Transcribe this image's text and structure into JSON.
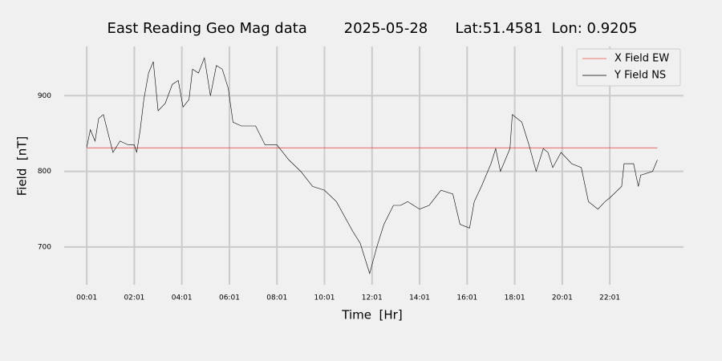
{
  "chart_data": {
    "type": "line",
    "title": "East Reading Geo Mag data        2025-05-28      Lat:51.4581  Lon: 0.9205",
    "xlabel": "Time  [Hr]",
    "ylabel": "Field  [nT]",
    "x": [
      0,
      0.15,
      0.35,
      0.5,
      0.7,
      0.9,
      1.1,
      1.4,
      1.75,
      2,
      2.1,
      2.25,
      2.4,
      2.6,
      2.8,
      3,
      3.3,
      3.6,
      3.85,
      4.05,
      4.3,
      4.45,
      4.7,
      4.95,
      5.2,
      5.45,
      5.7,
      5.95,
      6.15,
      6.5,
      7.1,
      7.5,
      8,
      8.5,
      9,
      9.5,
      10,
      10.5,
      11.2,
      11.5,
      11.9,
      12.2,
      12.5,
      12.9,
      13.2,
      13.5,
      14,
      14.4,
      14.9,
      15.4,
      15.7,
      16.1,
      16.3,
      16.6,
      17,
      17.2,
      17.4,
      17.8,
      17.9,
      18.3,
      18.6,
      18.9,
      19.2,
      19.4,
      19.6,
      19.95,
      20.4,
      20.8,
      21.1,
      21.5,
      21.8,
      22,
      22.5,
      22.6,
      23,
      23.2,
      23.3,
      23.8,
      24
    ],
    "series": [
      {
        "name": "X Field EW",
        "color": "#e5534b",
        "x": [
          0,
          24
        ],
        "values": [
          831,
          831
        ]
      },
      {
        "name": "Y Field NS",
        "color": "#000000",
        "values": [
          832,
          855,
          840,
          870,
          875,
          850,
          825,
          840,
          835,
          835,
          825,
          855,
          895,
          930,
          945,
          880,
          890,
          915,
          920,
          885,
          895,
          935,
          930,
          950,
          900,
          940,
          935,
          910,
          865,
          860,
          860,
          835,
          835,
          815,
          800,
          780,
          775,
          760,
          720,
          705,
          665,
          700,
          730,
          755,
          755,
          760,
          750,
          755,
          775,
          770,
          730,
          725,
          760,
          780,
          810,
          830,
          800,
          830,
          875,
          865,
          835,
          800,
          830,
          825,
          805,
          825,
          810,
          805,
          760,
          750,
          760,
          765,
          780,
          810,
          810,
          780,
          795,
          800,
          815
        ]
      }
    ],
    "xlim": [
      -0.95,
      25.1
    ],
    "xticks": [
      {
        "value": 0,
        "label": "00:01"
      },
      {
        "value": 2,
        "label": "02:01"
      },
      {
        "value": 4,
        "label": "04:01"
      },
      {
        "value": 6,
        "label": "06:01"
      },
      {
        "value": 8,
        "label": "08:01"
      },
      {
        "value": 10,
        "label": "10:01"
      },
      {
        "value": 12,
        "label": "12:01"
      },
      {
        "value": 14,
        "label": "14:01"
      },
      {
        "value": 16,
        "label": "16:01"
      },
      {
        "value": 18,
        "label": "18:01"
      },
      {
        "value": 20,
        "label": "20:01"
      },
      {
        "value": 22,
        "label": "22:01"
      }
    ],
    "ylim": [
      650,
      965
    ],
    "yticks": [
      700,
      800,
      900
    ],
    "grid": true,
    "legend": "upper right"
  }
}
